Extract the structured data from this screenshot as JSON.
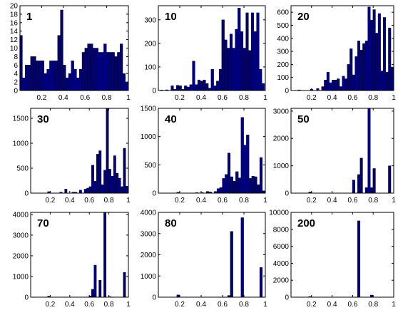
{
  "chart_data": [
    {
      "type": "bar",
      "title": "1",
      "xlim": [
        0,
        1
      ],
      "ylim": [
        0,
        20
      ],
      "xticks": [
        "0.2",
        "0.4",
        "0.6",
        "0.8",
        "1"
      ],
      "yticks": [
        "0",
        "2",
        "4",
        "6",
        "8",
        "10",
        "12",
        "14",
        "16",
        "18",
        "20"
      ],
      "bar_color": "#00007f",
      "x": [
        0.01,
        0.035,
        0.06,
        0.085,
        0.11,
        0.135,
        0.16,
        0.185,
        0.21,
        0.235,
        0.26,
        0.285,
        0.31,
        0.335,
        0.36,
        0.385,
        0.41,
        0.435,
        0.46,
        0.485,
        0.51,
        0.535,
        0.56,
        0.585,
        0.61,
        0.635,
        0.66,
        0.685,
        0.71,
        0.735,
        0.76,
        0.785,
        0.81,
        0.835,
        0.86,
        0.885,
        0.91,
        0.935,
        0.96,
        0.985
      ],
      "values": [
        13,
        3,
        6,
        6,
        8,
        8,
        7,
        7,
        7,
        4,
        5,
        7,
        7,
        7,
        13,
        19,
        6,
        3,
        4,
        7,
        5,
        3,
        5,
        9,
        10,
        11,
        11,
        10,
        10,
        9,
        9,
        11,
        9,
        9,
        9,
        8,
        9,
        11,
        4,
        2
      ]
    },
    {
      "type": "bar",
      "title": "10",
      "xlim": [
        0,
        1
      ],
      "ylim": [
        0,
        360
      ],
      "xticks": [
        "0.2",
        "0.4",
        "0.6",
        "0.8",
        "1"
      ],
      "yticks": [
        "0",
        "100",
        "200",
        "300"
      ],
      "bar_color": "#00007f",
      "x": [
        0.03,
        0.08,
        0.13,
        0.155,
        0.18,
        0.205,
        0.23,
        0.255,
        0.28,
        0.305,
        0.33,
        0.355,
        0.38,
        0.405,
        0.43,
        0.455,
        0.48,
        0.505,
        0.53,
        0.555,
        0.58,
        0.605,
        0.63,
        0.655,
        0.68,
        0.705,
        0.73,
        0.755,
        0.78,
        0.805,
        0.83,
        0.855,
        0.88,
        0.905,
        0.93,
        0.955,
        0.98
      ],
      "values": [
        2,
        3,
        20,
        5,
        22,
        20,
        5,
        20,
        15,
        25,
        125,
        25,
        45,
        40,
        45,
        30,
        10,
        90,
        20,
        40,
        90,
        300,
        215,
        180,
        240,
        180,
        260,
        350,
        250,
        180,
        330,
        170,
        330,
        250,
        330,
        90,
        30
      ]
    },
    {
      "type": "bar",
      "title": "20",
      "xlim": [
        0,
        1
      ],
      "ylim": [
        0,
        650
      ],
      "xticks": [
        "0.2",
        "0.4",
        "0.6",
        "0.8",
        "1"
      ],
      "yticks": [
        "0",
        "100",
        "200",
        "300",
        "400",
        "500",
        "600"
      ],
      "bar_color": "#00007f",
      "x": [
        0.08,
        0.2,
        0.26,
        0.31,
        0.335,
        0.36,
        0.385,
        0.41,
        0.435,
        0.46,
        0.485,
        0.51,
        0.535,
        0.56,
        0.585,
        0.61,
        0.635,
        0.66,
        0.685,
        0.71,
        0.735,
        0.76,
        0.785,
        0.81,
        0.835,
        0.86,
        0.885,
        0.91,
        0.935,
        0.96,
        0.985
      ],
      "values": [
        5,
        10,
        15,
        30,
        80,
        140,
        60,
        80,
        80,
        90,
        30,
        110,
        90,
        200,
        320,
        120,
        260,
        380,
        310,
        360,
        380,
        640,
        540,
        620,
        440,
        590,
        150,
        560,
        140,
        480,
        180
      ]
    },
    {
      "type": "bar",
      "title": "30",
      "xlim": [
        0,
        1
      ],
      "ylim": [
        0,
        1700
      ],
      "xticks": [
        "0.2",
        "0.4",
        "0.6",
        "0.8",
        "1"
      ],
      "yticks": [
        "0",
        "500",
        "1000",
        "1500"
      ],
      "bar_color": "#00007f",
      "x": [
        0.185,
        0.31,
        0.36,
        0.435,
        0.46,
        0.51,
        0.56,
        0.585,
        0.61,
        0.635,
        0.66,
        0.685,
        0.71,
        0.735,
        0.76,
        0.785,
        0.81,
        0.835,
        0.86,
        0.885,
        0.91,
        0.935,
        0.96,
        0.985
      ],
      "values": [
        30,
        20,
        80,
        20,
        20,
        60,
        80,
        100,
        130,
        560,
        240,
        780,
        850,
        170,
        460,
        1700,
        480,
        340,
        750,
        400,
        300,
        130,
        900,
        140
      ]
    },
    {
      "type": "bar",
      "title": "40",
      "xlim": [
        0,
        1
      ],
      "ylim": [
        0,
        1500
      ],
      "xticks": [
        "0.2",
        "0.4",
        "0.6",
        "0.8",
        "1"
      ],
      "yticks": [
        "0",
        "500",
        "1000",
        "1500"
      ],
      "bar_color": "#00007f",
      "x": [
        0.185,
        0.36,
        0.41,
        0.46,
        0.485,
        0.535,
        0.56,
        0.585,
        0.61,
        0.635,
        0.66,
        0.685,
        0.71,
        0.735,
        0.76,
        0.785,
        0.81,
        0.835,
        0.86,
        0.885,
        0.91,
        0.935,
        0.96,
        0.985
      ],
      "values": [
        15,
        10,
        10,
        30,
        20,
        30,
        80,
        100,
        260,
        330,
        710,
        290,
        210,
        380,
        270,
        1340,
        850,
        1030,
        260,
        300,
        290,
        150,
        630,
        40
      ]
    },
    {
      "type": "bar",
      "title": "50",
      "xlim": [
        0,
        1
      ],
      "ylim": [
        0,
        3100
      ],
      "xticks": [
        "0.2",
        "0.4",
        "0.6",
        "0.8",
        "1"
      ],
      "yticks": [
        "0",
        "1000",
        "2000",
        "3000"
      ],
      "bar_color": "#00007f",
      "x": [
        0.185,
        0.61,
        0.66,
        0.685,
        0.735,
        0.76,
        0.785,
        0.81,
        0.96
      ],
      "values": [
        40,
        480,
        680,
        1280,
        200,
        3100,
        200,
        900,
        1000
      ]
    },
    {
      "type": "bar",
      "title": "70",
      "xlim": [
        0,
        1
      ],
      "ylim": [
        0,
        4100
      ],
      "xticks": [
        "0.2",
        "0.4",
        "0.6",
        "0.8",
        "1"
      ],
      "yticks": [
        "0",
        "1000",
        "2000",
        "3000",
        "4000"
      ],
      "bar_color": "#00007f",
      "x": [
        0.185,
        0.61,
        0.635,
        0.66,
        0.71,
        0.76,
        0.81,
        0.96
      ],
      "values": [
        50,
        60,
        380,
        1550,
        820,
        4100,
        30,
        1200
      ]
    },
    {
      "type": "bar",
      "title": "80",
      "xlim": [
        0,
        1
      ],
      "ylim": [
        0,
        4000
      ],
      "xticks": [
        "0.2",
        "0.4",
        "0.6",
        "0.8",
        "1"
      ],
      "yticks": [
        "0",
        "1000",
        "2000",
        "3000",
        "4000"
      ],
      "bar_color": "#00007f",
      "x": [
        0.185,
        0.66,
        0.685,
        0.785,
        0.96
      ],
      "values": [
        110,
        80,
        3100,
        3750,
        1400
      ]
    },
    {
      "type": "bar",
      "title": "200",
      "xlim": [
        0,
        1
      ],
      "ylim": [
        0,
        10000
      ],
      "xticks": [
        "0.2",
        "0.4",
        "0.6",
        "0.8",
        "1"
      ],
      "yticks": [
        "0",
        "2000",
        "4000",
        "6000",
        "8000",
        "10000"
      ],
      "bar_color": "#00007f",
      "x": [
        0.185,
        0.66,
        0.785
      ],
      "values": [
        80,
        9000,
        250
      ]
    }
  ]
}
